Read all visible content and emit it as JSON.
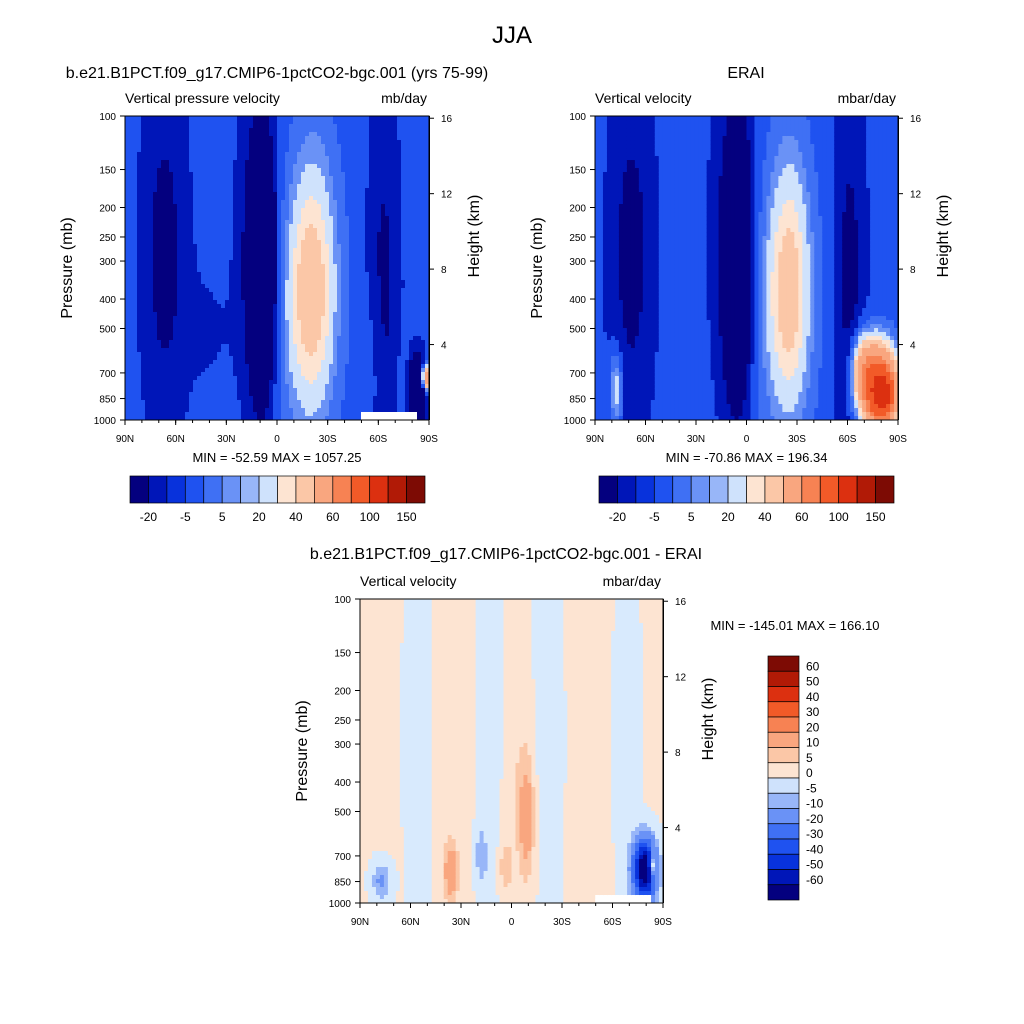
{
  "title": "JJA",
  "colors": {
    "neg": [
      "#04007f",
      "#0016b8",
      "#0832dc",
      "#1f52f0",
      "#3f70f4",
      "#6a92f6",
      "#98b6f8",
      "#cfe2fc"
    ],
    "pos": [
      "#fde4d2",
      "#fbc7a7",
      "#f9a67f",
      "#f78253",
      "#f25a28",
      "#dc3010",
      "#b11a06",
      "#7d0b04"
    ],
    "zero_band": "#d8eafd"
  },
  "chart_data": [
    {
      "id": "model",
      "type": "heatmap",
      "title": "b.e21.B1PCT.f09_g17.CMIP6-1pctCO2-bgc.001 (yrs 75-99)",
      "left_label": "Vertical pressure velocity",
      "right_label": "mb/day",
      "xlabel": "",
      "ylabel": "Pressure (mb)",
      "y2label": "Height (km)",
      "x_ticks": [
        "90N",
        "60N",
        "30N",
        "0",
        "30S",
        "60S",
        "90S"
      ],
      "x_values": [
        90,
        60,
        30,
        0,
        -30,
        -60,
        -90
      ],
      "xlim": [
        90,
        -90
      ],
      "y_ticks": [
        100,
        150,
        200,
        250,
        300,
        400,
        500,
        700,
        850,
        1000
      ],
      "ylim": [
        1000,
        100
      ],
      "y2_ticks": [
        16,
        12,
        8,
        4
      ],
      "min_text": "MIN = -52.59",
      "max_text": "MAX = 1057.25",
      "min": -52.59,
      "max": 1057.25,
      "colorbar": {
        "orientation": "horizontal",
        "labels": [
          "-20",
          "-5",
          "5",
          "20",
          "40",
          "60",
          "100",
          "150"
        ]
      }
    },
    {
      "id": "obs",
      "type": "heatmap",
      "title": "ERAI",
      "left_label": "Vertical velocity",
      "right_label": "mbar/day",
      "xlabel": "",
      "ylabel": "Pressure (mb)",
      "y2label": "Height (km)",
      "x_ticks": [
        "90N",
        "60N",
        "30N",
        "0",
        "30S",
        "60S",
        "90S"
      ],
      "x_values": [
        90,
        60,
        30,
        0,
        -30,
        -60,
        -90
      ],
      "xlim": [
        90,
        -90
      ],
      "y_ticks": [
        100,
        150,
        200,
        250,
        300,
        400,
        500,
        700,
        850,
        1000
      ],
      "ylim": [
        1000,
        100
      ],
      "y2_ticks": [
        16,
        12,
        8,
        4
      ],
      "min_text": "MIN = -70.86",
      "max_text": "MAX = 196.34",
      "min": -70.86,
      "max": 196.34,
      "colorbar": {
        "orientation": "horizontal",
        "labels": [
          "-20",
          "-5",
          "5",
          "20",
          "40",
          "60",
          "100",
          "150"
        ]
      }
    },
    {
      "id": "diff",
      "type": "heatmap",
      "title": "b.e21.B1PCT.f09_g17.CMIP6-1pctCO2-bgc.001 - ERAI",
      "left_label": "Vertical velocity",
      "right_label": "mbar/day",
      "xlabel": "",
      "ylabel": "Pressure (mb)",
      "y2label": "Height (km)",
      "x_ticks": [
        "90N",
        "60N",
        "30N",
        "0",
        "30S",
        "60S",
        "90S"
      ],
      "x_values": [
        90,
        60,
        30,
        0,
        -30,
        -60,
        -90
      ],
      "xlim": [
        90,
        -90
      ],
      "y_ticks": [
        100,
        150,
        200,
        250,
        300,
        400,
        500,
        700,
        850,
        1000
      ],
      "ylim": [
        1000,
        100
      ],
      "y2_ticks": [
        16,
        12,
        8,
        4
      ],
      "min_text": "MIN = -145.01",
      "max_text": "MAX = 166.10",
      "min": -145.01,
      "max": 166.1,
      "colorbar": {
        "orientation": "vertical",
        "labels": [
          "60",
          "50",
          "40",
          "30",
          "20",
          "10",
          "5",
          "0",
          "-5",
          "-10",
          "-20",
          "-30",
          "-40",
          "-50",
          "-60"
        ]
      }
    }
  ]
}
